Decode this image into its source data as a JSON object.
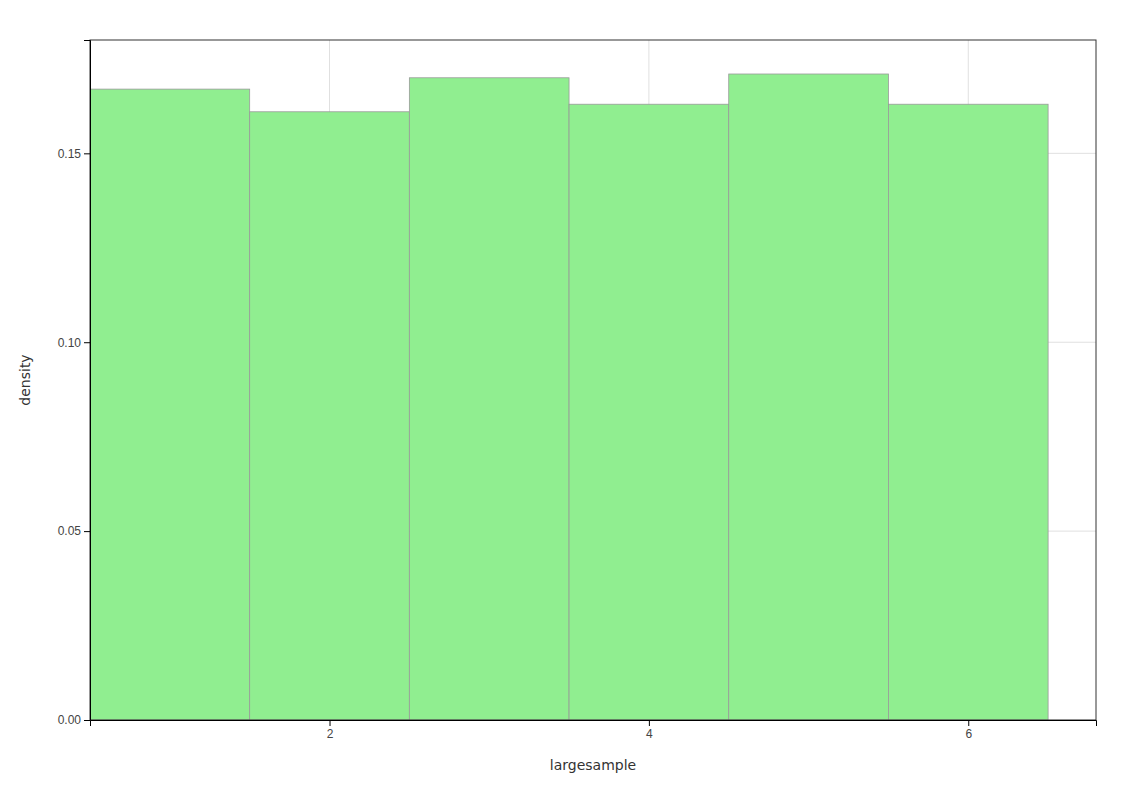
{
  "chart_data": {
    "type": "histogram",
    "xlabel": "largesample",
    "ylabel": "density",
    "bins": [
      0.5,
      1.5,
      2.5,
      3.5,
      4.5,
      5.5,
      6.5
    ],
    "values": [
      0.167,
      0.161,
      0.17,
      0.163,
      0.171,
      0.163
    ],
    "color": "#90EE90",
    "xlim": [
      0.5,
      6.8
    ],
    "ylim": [
      0.0,
      0.18
    ],
    "xticks": [
      2,
      4,
      6
    ],
    "yticks": [
      {
        "value": 0.0,
        "label": "0.00"
      },
      0.05,
      {
        "value": 0.1,
        "label": "0.10"
      },
      0.15
    ],
    "grid": true
  }
}
